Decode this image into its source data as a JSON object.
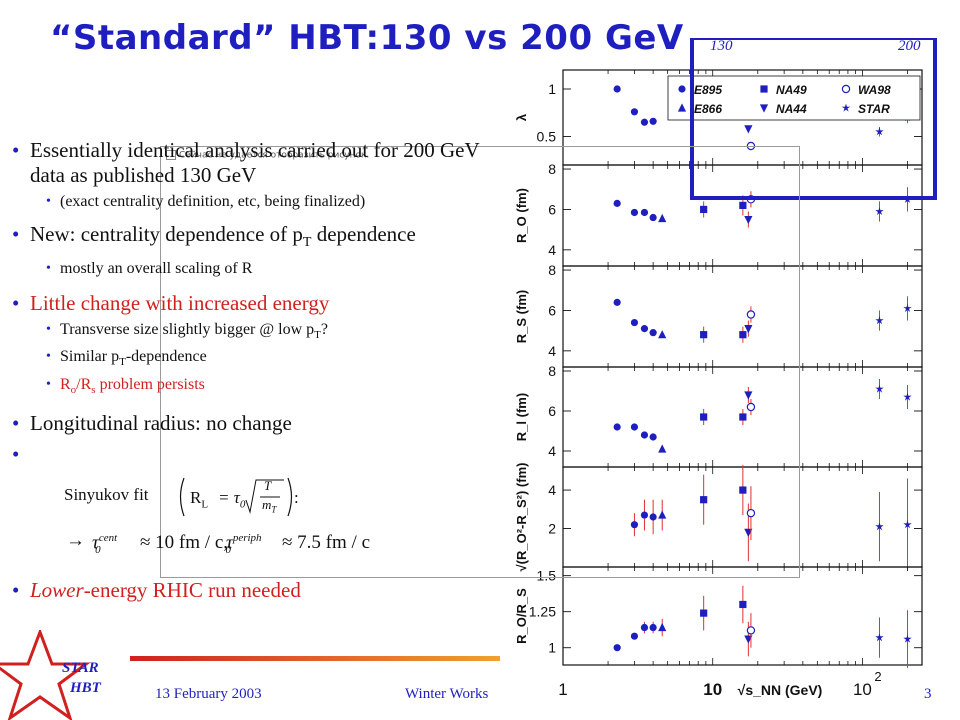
{
  "title": "“Standard” HBT:130 vs 200 GeV",
  "energy_labels": {
    "left": "130",
    "right": "200"
  },
  "bullets": [
    {
      "text": "Essentially identical analysis carried out for 200 GeV data as published 130 GeV",
      "sub": [
        "(exact centrality definition, etc, being finalized)"
      ]
    },
    {
      "text": "New: centrality dependence of p",
      "sub_T": "T",
      "text2": " dependence",
      "sub": [
        "mostly an overall scaling of R"
      ]
    },
    {
      "text": "Little change with increased energy",
      "sub": [
        "Transverse size slightly bigger @ low p",
        "Similar p",
        "R"
      ]
    },
    {
      "text": "Longitudinal radius: no change"
    },
    {
      "text_lower": "Lower",
      "text_rest": "-energy RHIC run needed"
    }
  ],
  "sub_parts": {
    "low_pt_tail": "?",
    "similar_tail": "-dependence",
    "ro_rs": "R",
    "ro_sub": "o",
    "rs_mid": "/R",
    "rs_sub": "s",
    "ro_tail": " problem persists"
  },
  "broken_image_text": "Сейчас не удается отобразить рисунок.",
  "formula": {
    "sinyukov": "Sinyukov fit",
    "rl": "R",
    "rl_sub": "L",
    "eq": "= τ",
    "zero": "0",
    "sqrt_num": "T",
    "sqrt_den": "m",
    "sqrt_den_sub": "T",
    "colon": ":",
    "arrow": "→",
    "tau_cent": "τ",
    "cent_sup": "cent",
    "approx1": "≈ 10 fm / c,",
    "periph_sup": "periph",
    "approx2": "≈ 7.5 fm / c"
  },
  "footer": {
    "date": "13 February 2003",
    "conference": "Winter Works",
    "page": "3"
  },
  "star_logo": {
    "line1": "STAR",
    "line2": "HBT"
  },
  "legend": [
    {
      "label": "E895",
      "marker": "circle",
      "color": "#1f1fbf"
    },
    {
      "label": "NA49",
      "marker": "square",
      "color": "#1f1fbf"
    },
    {
      "label": "WA98",
      "marker": "open-circle",
      "color": "#1f1fbf"
    },
    {
      "label": "E866",
      "marker": "triangle-up",
      "color": "#1f1fbf"
    },
    {
      "label": "NA44",
      "marker": "triangle-down",
      "color": "#1f1fbf"
    },
    {
      "label": "STAR",
      "marker": "star",
      "color": "#1f1fbf"
    }
  ],
  "chart_data": {
    "type": "scatter",
    "x_axis": {
      "label": "√s_NN (GeV)",
      "scale": "log",
      "ticks": [
        "1",
        "10",
        "10²"
      ],
      "range": [
        1,
        250
      ]
    },
    "panels": [
      {
        "ylabel": "λ",
        "ylim": [
          0.2,
          1.2
        ],
        "ticks": [
          {
            "v": 0.5,
            "t": "0.5"
          },
          {
            "v": 1,
            "t": "1"
          }
        ],
        "points": [
          {
            "x": 2.3,
            "y": 1.0,
            "m": "circle"
          },
          {
            "x": 3.0,
            "y": 0.76,
            "m": "circle"
          },
          {
            "x": 3.5,
            "y": 0.65,
            "m": "circle"
          },
          {
            "x": 4.0,
            "y": 0.66,
            "m": "circle"
          },
          {
            "x": 17.3,
            "y": 0.58,
            "m": "triangle-down"
          },
          {
            "x": 18.0,
            "y": 0.4,
            "m": "open-circle"
          },
          {
            "x": 130,
            "y": 0.55,
            "m": "star",
            "err": 0.05
          },
          {
            "x": 200,
            "y": 0.7,
            "m": "star",
            "err": 0.06
          }
        ]
      },
      {
        "ylabel": "R_O (fm)",
        "ylim": [
          3.2,
          8.2
        ],
        "ticks": [
          {
            "v": 4,
            "t": "4"
          },
          {
            "v": 6,
            "t": "6"
          },
          {
            "v": 8,
            "t": "8"
          }
        ],
        "points": [
          {
            "x": 2.3,
            "y": 6.3,
            "m": "circle"
          },
          {
            "x": 3.0,
            "y": 5.85,
            "m": "circle"
          },
          {
            "x": 3.5,
            "y": 5.85,
            "m": "circle"
          },
          {
            "x": 4.0,
            "y": 5.6,
            "m": "circle"
          },
          {
            "x": 4.6,
            "y": 5.55,
            "m": "triangle-up"
          },
          {
            "x": 8.7,
            "y": 6.0,
            "m": "square",
            "err": 0.4
          },
          {
            "x": 15.9,
            "y": 6.2,
            "m": "square",
            "err": 0.5
          },
          {
            "x": 17.3,
            "y": 5.5,
            "m": "triangle-down",
            "err": 0.4
          },
          {
            "x": 18.0,
            "y": 6.5,
            "m": "open-circle",
            "err": 0.4
          },
          {
            "x": 130,
            "y": 5.9,
            "m": "star",
            "err": 0.5
          },
          {
            "x": 200,
            "y": 6.5,
            "m": "star",
            "err": 0.6
          }
        ]
      },
      {
        "ylabel": "R_S (fm)",
        "ylim": [
          3.2,
          8.2
        ],
        "ticks": [
          {
            "v": 4,
            "t": "4"
          },
          {
            "v": 6,
            "t": "6"
          },
          {
            "v": 8,
            "t": "8"
          }
        ],
        "points": [
          {
            "x": 2.3,
            "y": 6.4,
            "m": "circle"
          },
          {
            "x": 3.0,
            "y": 5.4,
            "m": "circle"
          },
          {
            "x": 3.5,
            "y": 5.1,
            "m": "circle"
          },
          {
            "x": 4.0,
            "y": 4.9,
            "m": "circle"
          },
          {
            "x": 4.6,
            "y": 4.8,
            "m": "triangle-up"
          },
          {
            "x": 8.7,
            "y": 4.8,
            "m": "square",
            "err": 0.4
          },
          {
            "x": 15.9,
            "y": 4.8,
            "m": "square",
            "err": 0.4
          },
          {
            "x": 17.3,
            "y": 5.1,
            "m": "triangle-down",
            "err": 0.4
          },
          {
            "x": 18.0,
            "y": 5.8,
            "m": "open-circle",
            "err": 0.4
          },
          {
            "x": 130,
            "y": 5.5,
            "m": "star",
            "err": 0.5
          },
          {
            "x": 200,
            "y": 6.1,
            "m": "star",
            "err": 0.6
          }
        ]
      },
      {
        "ylabel": "R_l (fm)",
        "ylim": [
          3.2,
          8.2
        ],
        "ticks": [
          {
            "v": 4,
            "t": "4"
          },
          {
            "v": 6,
            "t": "6"
          },
          {
            "v": 8,
            "t": "8"
          }
        ],
        "points": [
          {
            "x": 2.3,
            "y": 5.2,
            "m": "circle"
          },
          {
            "x": 3.0,
            "y": 5.2,
            "m": "circle"
          },
          {
            "x": 3.5,
            "y": 4.8,
            "m": "circle"
          },
          {
            "x": 4.0,
            "y": 4.7,
            "m": "circle"
          },
          {
            "x": 4.6,
            "y": 4.1,
            "m": "triangle-up"
          },
          {
            "x": 8.7,
            "y": 5.7,
            "m": "square",
            "err": 0.4
          },
          {
            "x": 15.9,
            "y": 5.7,
            "m": "square",
            "err": 0.4
          },
          {
            "x": 17.3,
            "y": 6.8,
            "m": "triangle-down",
            "err": 0.4
          },
          {
            "x": 18.0,
            "y": 6.2,
            "m": "open-circle",
            "err": 0.4
          },
          {
            "x": 130,
            "y": 7.1,
            "m": "star",
            "err": 0.5
          },
          {
            "x": 200,
            "y": 6.7,
            "m": "star",
            "err": 0.6
          }
        ]
      },
      {
        "ylabel": "√(R_O²-R_S²) (fm)",
        "ylim": [
          0,
          5.2
        ],
        "ticks": [
          {
            "v": 2,
            "t": "2"
          },
          {
            "v": 4,
            "t": "4"
          }
        ],
        "points": [
          {
            "x": 3.0,
            "y": 2.2,
            "m": "circle",
            "err": 0.6
          },
          {
            "x": 3.5,
            "y": 2.7,
            "m": "circle",
            "err": 0.8
          },
          {
            "x": 4.0,
            "y": 2.6,
            "m": "circle",
            "err": 0.9
          },
          {
            "x": 4.6,
            "y": 2.7,
            "m": "triangle-up",
            "err": 0.8
          },
          {
            "x": 8.7,
            "y": 3.5,
            "m": "square",
            "err": 1.3
          },
          {
            "x": 15.9,
            "y": 4.0,
            "m": "square",
            "err": 1.3
          },
          {
            "x": 17.3,
            "y": 1.8,
            "m": "triangle-down",
            "err": 1.5
          },
          {
            "x": 18.0,
            "y": 2.8,
            "m": "open-circle",
            "err": 1.4
          },
          {
            "x": 130,
            "y": 2.1,
            "m": "star",
            "err": 1.8
          },
          {
            "x": 200,
            "y": 2.2,
            "m": "star",
            "err": 2.4
          }
        ]
      },
      {
        "ylabel": "R_O/R_S",
        "ylim": [
          0.88,
          1.56
        ],
        "ticks": [
          {
            "v": 1,
            "t": "1"
          },
          {
            "v": 1.25,
            "t": "1.25"
          },
          {
            "v": 1.5,
            "t": "1.5"
          }
        ],
        "points": [
          {
            "x": 2.3,
            "y": 1.0,
            "m": "circle"
          },
          {
            "x": 3.0,
            "y": 1.08,
            "m": "circle"
          },
          {
            "x": 3.5,
            "y": 1.14,
            "m": "circle",
            "err": 0.04
          },
          {
            "x": 4.0,
            "y": 1.14,
            "m": "circle",
            "err": 0.04
          },
          {
            "x": 4.6,
            "y": 1.14,
            "m": "triangle-up",
            "err": 0.06
          },
          {
            "x": 8.7,
            "y": 1.24,
            "m": "square",
            "err": 0.12
          },
          {
            "x": 15.9,
            "y": 1.3,
            "m": "square",
            "err": 0.13
          },
          {
            "x": 17.3,
            "y": 1.06,
            "m": "triangle-down",
            "err": 0.12
          },
          {
            "x": 18.0,
            "y": 1.12,
            "m": "open-circle",
            "err": 0.12
          },
          {
            "x": 130,
            "y": 1.07,
            "m": "star",
            "err": 0.14
          },
          {
            "x": 200,
            "y": 1.06,
            "m": "star",
            "err": 0.2
          }
        ]
      }
    ]
  }
}
